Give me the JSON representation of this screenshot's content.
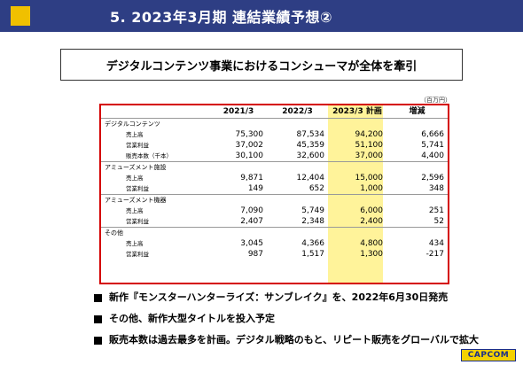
{
  "header": {
    "title": "5.  2023年3月期  連結業績予想②"
  },
  "subtitle": "デジタルコンテンツ事業におけるコンシューマが全体を牽引",
  "unit": "（百万円）",
  "table": {
    "columns": [
      "",
      "2021/3",
      "2022/3",
      "2023/3 計画",
      "増減"
    ],
    "sections": [
      {
        "name": "デジタルコンテンツ",
        "rows": [
          {
            "label": "売上高",
            "values": [
              "75,300",
              "87,534",
              "94,200",
              "6,666"
            ]
          },
          {
            "label": "営業利益",
            "values": [
              "37,002",
              "45,359",
              "51,100",
              "5,741"
            ]
          },
          {
            "label": "販売本数（千本）",
            "values": [
              "30,100",
              "32,600",
              "37,000",
              "4,400"
            ]
          }
        ]
      },
      {
        "name": "アミューズメント施設",
        "rows": [
          {
            "label": "売上高",
            "values": [
              "9,871",
              "12,404",
              "15,000",
              "2,596"
            ]
          },
          {
            "label": "営業利益",
            "values": [
              "149",
              "652",
              "1,000",
              "348"
            ]
          }
        ]
      },
      {
        "name": "アミューズメント機器",
        "rows": [
          {
            "label": "売上高",
            "values": [
              "7,090",
              "5,749",
              "6,000",
              "251"
            ]
          },
          {
            "label": "営業利益",
            "values": [
              "2,407",
              "2,348",
              "2,400",
              "52"
            ]
          }
        ]
      },
      {
        "name": "その他",
        "rows": [
          {
            "label": "売上高",
            "values": [
              "3,045",
              "4,366",
              "4,800",
              "434"
            ]
          },
          {
            "label": "営業利益",
            "values": [
              "987",
              "1,517",
              "1,300",
              "-217"
            ]
          }
        ]
      }
    ]
  },
  "bullets": [
    "新作『モンスターハンターライズ：サンブレイク』を、2022年6月30日発売",
    "その他、新作大型タイトルを投入予定",
    "販売本数は過去最多を計画。デジタル戦略のもと、リピート販売をグローバルで拡大"
  ],
  "logo": "CAPCOM",
  "colors": {
    "header_bg": "#2e3e84",
    "accent": "#f0c000",
    "highlight": "#fff39a",
    "frame": "#d40000"
  }
}
